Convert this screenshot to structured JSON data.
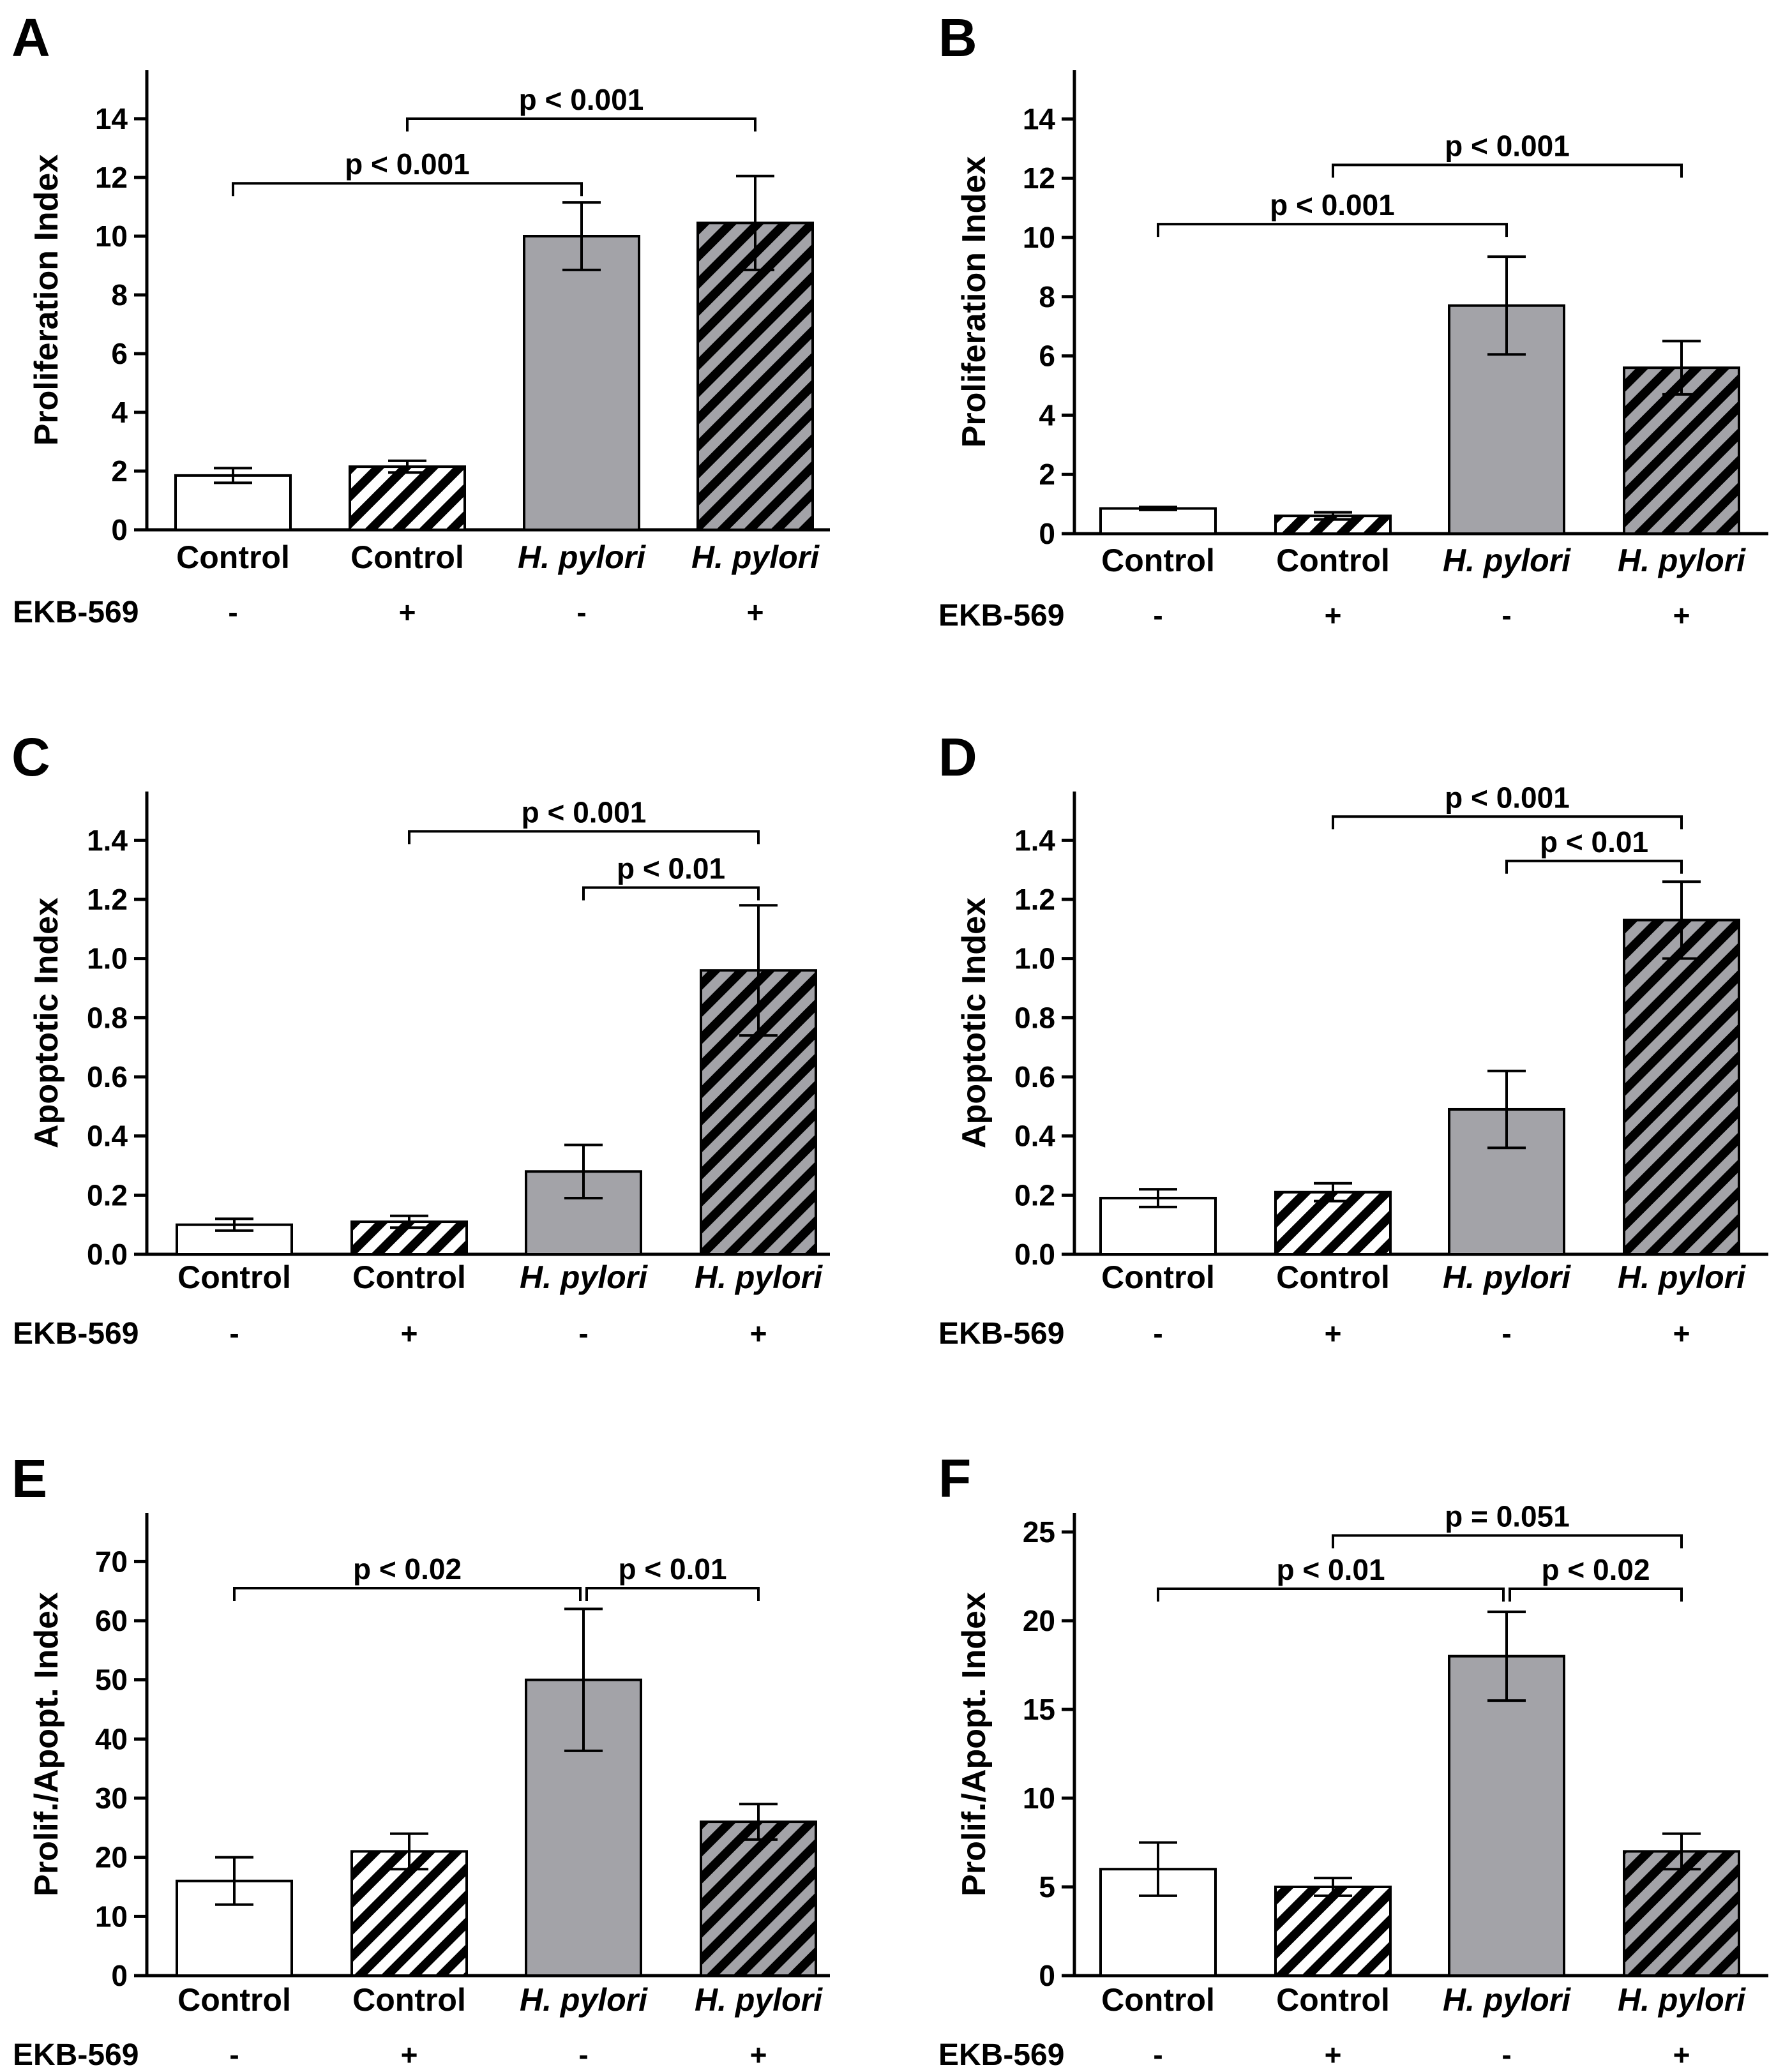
{
  "figure": {
    "treatment_label": "EKB-569",
    "treatment_signs": [
      "-",
      "+",
      "-",
      "+"
    ]
  },
  "colors": {
    "axis": "#000000",
    "bar_white": "#ffffff",
    "bar_gray": "#a3a3a8",
    "hatch": "#000000"
  },
  "chart_data": [
    {
      "panel": "A",
      "type": "bar",
      "ylabel": "Proliferation Index",
      "ylim": [
        0,
        15
      ],
      "yticks": [
        0,
        2,
        4,
        6,
        8,
        10,
        12,
        14
      ],
      "categories": [
        "Control",
        "Control",
        "H. pylori",
        "H. pylori"
      ],
      "italic_categories": [
        false,
        false,
        true,
        true
      ],
      "treatment": [
        "-",
        "+",
        "-",
        "+"
      ],
      "styles": [
        "white",
        "white-hatched",
        "gray",
        "gray-hatched"
      ],
      "values": [
        1.85,
        2.15,
        10.0,
        10.45
      ],
      "errors": [
        0.25,
        0.2,
        1.15,
        1.6
      ],
      "significance": [
        {
          "from": 1,
          "to": 3,
          "y": 14.0,
          "label": "p < 0.001"
        },
        {
          "from": 0,
          "to": 2,
          "y": 11.8,
          "label": "p < 0.001"
        }
      ]
    },
    {
      "panel": "B",
      "type": "bar",
      "ylabel": "Proliferation Index",
      "ylim": [
        0,
        15
      ],
      "yticks": [
        0,
        2,
        4,
        6,
        8,
        10,
        12,
        14
      ],
      "categories": [
        "Control",
        "Control",
        "H. pylori",
        "H. pylori"
      ],
      "italic_categories": [
        false,
        false,
        true,
        true
      ],
      "treatment": [
        "-",
        "+",
        "-",
        "+"
      ],
      "styles": [
        "white",
        "white-hatched",
        "gray",
        "gray-hatched"
      ],
      "values": [
        0.85,
        0.6,
        7.7,
        5.6
      ],
      "errors": [
        0.05,
        0.12,
        1.65,
        0.9
      ],
      "significance": [
        {
          "from": 1,
          "to": 3,
          "y": 12.45,
          "label": "p < 0.001"
        },
        {
          "from": 0,
          "to": 2,
          "y": 10.45,
          "label": "p < 0.001"
        }
      ]
    },
    {
      "panel": "C",
      "type": "bar",
      "ylabel": "Apoptotic Index",
      "ylim": [
        0,
        1.5
      ],
      "yticks": [
        0.0,
        0.2,
        0.4,
        0.6,
        0.8,
        1.0,
        1.2,
        1.4
      ],
      "tick_decimals": 1,
      "categories": [
        "Control",
        "Control",
        "H. pylori",
        "H. pylori"
      ],
      "italic_categories": [
        false,
        false,
        true,
        true
      ],
      "treatment": [
        "-",
        "+",
        "-",
        "+"
      ],
      "styles": [
        "white",
        "white-hatched",
        "gray",
        "gray-hatched"
      ],
      "values": [
        0.1,
        0.11,
        0.28,
        0.96
      ],
      "errors": [
        0.02,
        0.02,
        0.09,
        0.22
      ],
      "significance": [
        {
          "from": 1,
          "to": 3,
          "y": 1.43,
          "label": "p < 0.001"
        },
        {
          "from": 2,
          "to": 3,
          "y": 1.24,
          "label": "p < 0.01"
        }
      ]
    },
    {
      "panel": "D",
      "type": "bar",
      "ylabel": "Apoptotic Index",
      "ylim": [
        0,
        1.5
      ],
      "yticks": [
        0.0,
        0.2,
        0.4,
        0.6,
        0.8,
        1.0,
        1.2,
        1.4
      ],
      "tick_decimals": 1,
      "categories": [
        "Control",
        "Control",
        "H. pylori",
        "H. pylori"
      ],
      "italic_categories": [
        false,
        false,
        true,
        true
      ],
      "treatment": [
        "-",
        "+",
        "-",
        "+"
      ],
      "styles": [
        "white",
        "white-hatched",
        "gray",
        "gray-hatched"
      ],
      "values": [
        0.19,
        0.21,
        0.49,
        1.13
      ],
      "errors": [
        0.03,
        0.03,
        0.13,
        0.13
      ],
      "significance": [
        {
          "from": 1,
          "to": 3,
          "y": 1.48,
          "label": "p < 0.001"
        },
        {
          "from": 2,
          "to": 3,
          "y": 1.33,
          "label": "p < 0.01"
        }
      ]
    },
    {
      "panel": "E",
      "type": "bar",
      "ylabel": "Prolif./Apopt. Index",
      "ylim": [
        0,
        75
      ],
      "yticks": [
        0,
        10,
        20,
        30,
        40,
        50,
        60,
        70
      ],
      "categories": [
        "Control",
        "Control",
        "H. pylori",
        "H. pylori"
      ],
      "italic_categories": [
        false,
        false,
        true,
        true
      ],
      "treatment": [
        "-",
        "+",
        "-",
        "+"
      ],
      "styles": [
        "white",
        "white-hatched",
        "gray",
        "gray-hatched"
      ],
      "values": [
        16,
        21,
        50,
        26
      ],
      "errors": [
        4,
        3,
        12,
        3
      ],
      "significance": [
        {
          "from": 0,
          "to": 2,
          "y": 65.5,
          "label": "p < 0.02",
          "shrink_to": 5
        },
        {
          "from": 2,
          "to": 3,
          "y": 65.5,
          "label": "p < 0.01",
          "shrink_from": 5
        }
      ]
    },
    {
      "panel": "F",
      "type": "bar",
      "ylabel": "Prolif./Apopt. Index",
      "ylim": [
        0,
        25
      ],
      "yticks": [
        0,
        5,
        10,
        15,
        20,
        25
      ],
      "categories": [
        "Control",
        "Control",
        "H. pylori",
        "H. pylori"
      ],
      "italic_categories": [
        false,
        false,
        true,
        true
      ],
      "treatment": [
        "-",
        "+",
        "-",
        "+"
      ],
      "styles": [
        "white",
        "white-hatched",
        "gray",
        "gray-hatched"
      ],
      "values": [
        6.0,
        5.0,
        18.0,
        7.0
      ],
      "errors": [
        1.5,
        0.5,
        2.5,
        1.0
      ],
      "significance": [
        {
          "from": 1,
          "to": 3,
          "y": 24.8,
          "label": "p = 0.051"
        },
        {
          "from": 0,
          "to": 2,
          "y": 21.8,
          "label": "p < 0.01",
          "shrink_to": 5
        },
        {
          "from": 2,
          "to": 3,
          "y": 21.8,
          "label": "p < 0.02",
          "shrink_from": 5
        }
      ]
    }
  ]
}
